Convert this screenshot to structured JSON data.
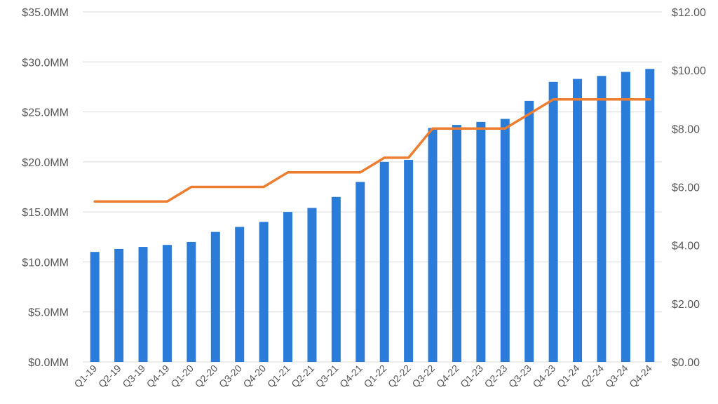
{
  "chart_data": {
    "type": "bar",
    "title": "",
    "xlabel": "",
    "ylabel": "",
    "categories": [
      "Q1-19",
      "Q2-19",
      "Q3-19",
      "Q4-19",
      "Q1-20",
      "Q2-20",
      "Q3-20",
      "Q4-20",
      "Q1-21",
      "Q2-21",
      "Q3-21",
      "Q4-21",
      "Q1-22",
      "Q2-22",
      "Q3-22",
      "Q4-22",
      "Q1-23",
      "Q2-23",
      "Q3-23",
      "Q4-23",
      "Q1-24",
      "Q2-24",
      "Q3-24",
      "Q4-24"
    ],
    "series": [
      {
        "type": "bar",
        "axis": "left",
        "color": "#2b7cd9",
        "values": [
          11.0,
          11.3,
          11.5,
          11.7,
          12.0,
          13.0,
          13.5,
          14.0,
          15.0,
          15.4,
          16.5,
          18.0,
          20.0,
          20.2,
          23.4,
          23.7,
          24.0,
          24.3,
          26.1,
          28.0,
          28.3,
          28.6,
          29.0,
          29.3
        ]
      },
      {
        "type": "line",
        "axis": "right",
        "color": "#ed7d31",
        "values": [
          5.5,
          5.5,
          5.5,
          5.5,
          6.0,
          6.0,
          6.0,
          6.0,
          6.5,
          6.5,
          6.5,
          6.5,
          7.0,
          7.0,
          8.0,
          8.0,
          8.0,
          8.0,
          8.5,
          9.0,
          9.0,
          9.0,
          9.0,
          9.0
        ]
      }
    ],
    "y_left": {
      "ylim": [
        0,
        35
      ],
      "ticks": [
        0,
        5,
        10,
        15,
        20,
        25,
        30,
        35
      ],
      "tick_labels": [
        "$0.0MM",
        "$5.0MM",
        "$10.0MM",
        "$15.0MM",
        "$20.0MM",
        "$25.0MM",
        "$30.0MM",
        "$35.0MM"
      ]
    },
    "y_right": {
      "ylim": [
        0,
        12
      ],
      "ticks": [
        0,
        2,
        4,
        6,
        8,
        10,
        12
      ],
      "tick_labels": [
        "$0.00",
        "$2.00",
        "$4.00",
        "$6.00",
        "$8.00",
        "$10.00",
        "$12.00"
      ]
    },
    "grid": true,
    "legend": "none"
  }
}
